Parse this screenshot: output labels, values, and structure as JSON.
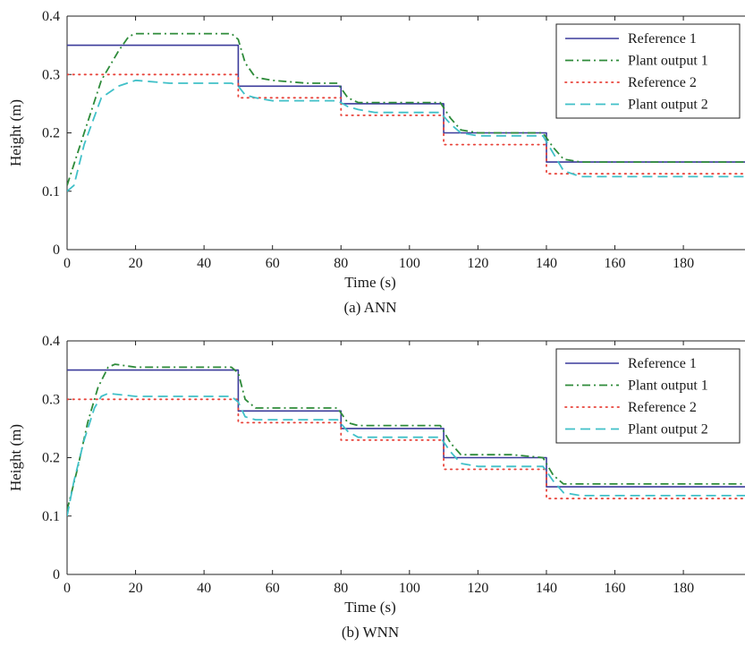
{
  "chart_data": [
    {
      "type": "line",
      "caption": "(a) ANN",
      "xlabel": "Time (s)",
      "ylabel": "Height (m)",
      "xlim": [
        0,
        198
      ],
      "ylim": [
        0,
        0.4
      ],
      "xticks": [
        0,
        20,
        40,
        60,
        80,
        100,
        120,
        140,
        160,
        180
      ],
      "yticks": [
        0,
        0.1,
        0.2,
        0.3,
        0.4
      ],
      "xtick_labels": [
        "0",
        "20",
        "40",
        "60",
        "80",
        "100",
        "120",
        "140",
        "160",
        "180"
      ],
      "ytick_labels": [
        "0",
        "0.1",
        "0.2",
        "0.3",
        "0.4"
      ],
      "grid": false,
      "legend_position": "top-right",
      "series": [
        {
          "name": "Reference 1",
          "color": "#3b3b9b",
          "style": "solid",
          "x": [
            0,
            50,
            50,
            80,
            80,
            110,
            110,
            140,
            140,
            198
          ],
          "y": [
            0.35,
            0.35,
            0.28,
            0.28,
            0.25,
            0.25,
            0.2,
            0.2,
            0.15,
            0.15
          ]
        },
        {
          "name": "Plant output 1",
          "color": "#2e8b3a",
          "style": "dashdot",
          "x": [
            0,
            5,
            10,
            15,
            18,
            20,
            30,
            40,
            48,
            50,
            52,
            55,
            60,
            70,
            79,
            82,
            85,
            90,
            100,
            109,
            112,
            115,
            120,
            130,
            139,
            142,
            145,
            150,
            170,
            198
          ],
          "y": [
            0.11,
            0.2,
            0.29,
            0.34,
            0.365,
            0.37,
            0.37,
            0.37,
            0.37,
            0.36,
            0.32,
            0.295,
            0.29,
            0.285,
            0.285,
            0.26,
            0.252,
            0.252,
            0.252,
            0.252,
            0.225,
            0.205,
            0.2,
            0.2,
            0.2,
            0.175,
            0.155,
            0.15,
            0.15,
            0.15
          ]
        },
        {
          "name": "Reference 2",
          "color": "#e8433a",
          "style": "dotted",
          "x": [
            0,
            50,
            50,
            80,
            80,
            110,
            110,
            140,
            140,
            198
          ],
          "y": [
            0.3,
            0.3,
            0.26,
            0.26,
            0.23,
            0.23,
            0.18,
            0.18,
            0.13,
            0.13
          ]
        },
        {
          "name": "Plant output 2",
          "color": "#40c0c8",
          "style": "dashed",
          "x": [
            0,
            2,
            5,
            10,
            15,
            20,
            30,
            40,
            48,
            50,
            52,
            55,
            60,
            70,
            79,
            82,
            85,
            90,
            100,
            109,
            112,
            115,
            120,
            130,
            139,
            142,
            145,
            150,
            170,
            198
          ],
          "y": [
            0.1,
            0.11,
            0.18,
            0.26,
            0.28,
            0.29,
            0.285,
            0.285,
            0.285,
            0.28,
            0.265,
            0.26,
            0.255,
            0.255,
            0.255,
            0.245,
            0.24,
            0.235,
            0.235,
            0.235,
            0.215,
            0.2,
            0.195,
            0.195,
            0.195,
            0.165,
            0.135,
            0.125,
            0.125,
            0.125
          ]
        }
      ]
    },
    {
      "type": "line",
      "caption": "(b) WNN",
      "xlabel": "Time (s)",
      "ylabel": "Height (m)",
      "xlim": [
        0,
        198
      ],
      "ylim": [
        0,
        0.4
      ],
      "xticks": [
        0,
        20,
        40,
        60,
        80,
        100,
        120,
        140,
        160,
        180
      ],
      "yticks": [
        0,
        0.1,
        0.2,
        0.3,
        0.4
      ],
      "xtick_labels": [
        "0",
        "20",
        "40",
        "60",
        "80",
        "100",
        "120",
        "140",
        "160",
        "180"
      ],
      "ytick_labels": [
        "0",
        "0.1",
        "0.2",
        "0.3",
        "0.4"
      ],
      "grid": false,
      "legend_position": "top-right",
      "series": [
        {
          "name": "Reference 1",
          "color": "#3b3b9b",
          "style": "solid",
          "x": [
            0,
            50,
            50,
            80,
            80,
            110,
            110,
            140,
            140,
            198
          ],
          "y": [
            0.35,
            0.35,
            0.28,
            0.28,
            0.25,
            0.25,
            0.2,
            0.2,
            0.15,
            0.15
          ]
        },
        {
          "name": "Plant output 1",
          "color": "#2e8b3a",
          "style": "dashdot",
          "x": [
            0,
            3,
            6,
            9,
            12,
            14,
            20,
            30,
            40,
            48,
            50,
            52,
            55,
            60,
            70,
            79,
            82,
            85,
            90,
            100,
            109,
            112,
            115,
            120,
            130,
            139,
            142,
            145,
            150,
            170,
            198
          ],
          "y": [
            0.11,
            0.18,
            0.26,
            0.32,
            0.355,
            0.36,
            0.355,
            0.355,
            0.355,
            0.355,
            0.345,
            0.3,
            0.285,
            0.285,
            0.285,
            0.285,
            0.26,
            0.255,
            0.255,
            0.255,
            0.255,
            0.225,
            0.205,
            0.205,
            0.205,
            0.2,
            0.17,
            0.155,
            0.155,
            0.155,
            0.155
          ]
        },
        {
          "name": "Reference 2",
          "color": "#e8433a",
          "style": "dotted",
          "x": [
            0,
            50,
            50,
            80,
            80,
            110,
            110,
            140,
            140,
            198
          ],
          "y": [
            0.3,
            0.3,
            0.26,
            0.26,
            0.23,
            0.23,
            0.18,
            0.18,
            0.13,
            0.13
          ]
        },
        {
          "name": "Plant output 2",
          "color": "#40c0c8",
          "style": "dashed",
          "x": [
            0,
            2,
            5,
            8,
            10,
            12,
            20,
            30,
            40,
            48,
            50,
            52,
            55,
            60,
            70,
            79,
            82,
            85,
            90,
            100,
            109,
            112,
            115,
            120,
            130,
            139,
            142,
            145,
            150,
            170,
            198
          ],
          "y": [
            0.1,
            0.16,
            0.23,
            0.285,
            0.305,
            0.31,
            0.305,
            0.305,
            0.305,
            0.305,
            0.295,
            0.27,
            0.265,
            0.265,
            0.265,
            0.265,
            0.245,
            0.235,
            0.235,
            0.235,
            0.235,
            0.21,
            0.19,
            0.185,
            0.185,
            0.185,
            0.16,
            0.14,
            0.135,
            0.135,
            0.135
          ]
        }
      ]
    }
  ]
}
